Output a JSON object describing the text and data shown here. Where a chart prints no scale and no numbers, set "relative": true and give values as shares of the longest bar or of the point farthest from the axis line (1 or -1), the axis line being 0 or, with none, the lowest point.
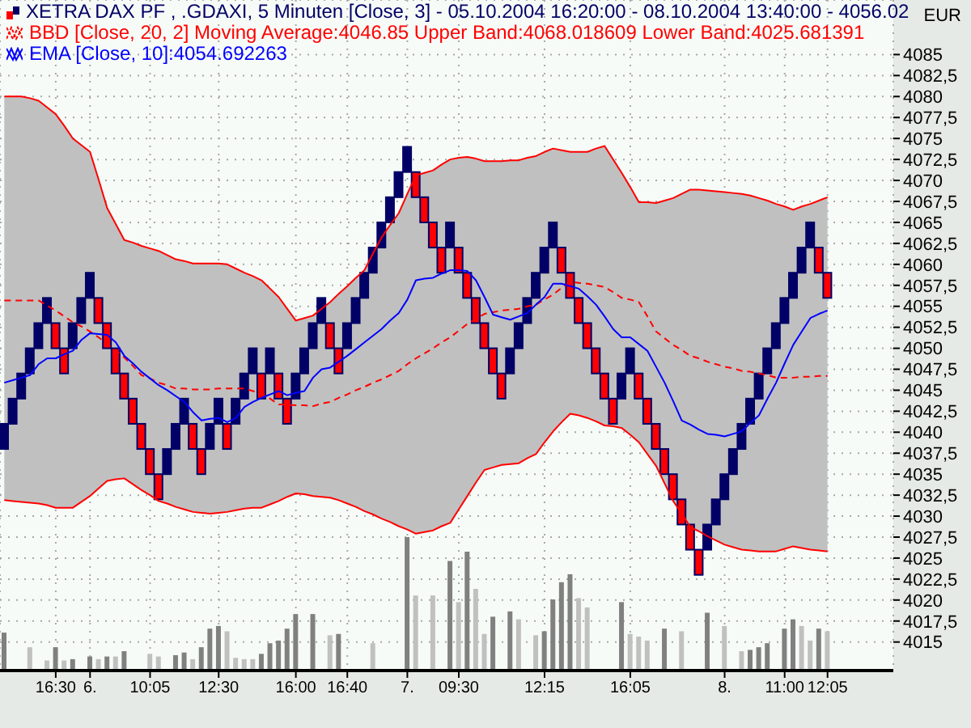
{
  "chart_data": [
    {
      "type": "candlestick",
      "ylabel": "EUR",
      "legend": "top left",
      "grid": true,
      "categories": [
        null,
        null,
        null,
        null,
        null,
        null,
        "16:30",
        null,
        null,
        null,
        "6.",
        null,
        null,
        null,
        null,
        null,
        null,
        "10:05",
        null,
        null,
        null,
        null,
        null,
        null,
        null,
        "12:30",
        null,
        null,
        null,
        null,
        null,
        null,
        null,
        null,
        "16:00",
        null,
        null,
        null,
        null,
        null,
        "16:40",
        null,
        null,
        null,
        null,
        null,
        null,
        "7.",
        null,
        null,
        null,
        null,
        null,
        "09:30",
        null,
        null,
        null,
        null,
        null,
        null,
        null,
        null,
        null,
        "12:15",
        null,
        null,
        null,
        null,
        null,
        null,
        null,
        null,
        null,
        "16:05",
        null,
        null,
        null,
        null,
        null,
        null,
        null,
        null,
        null,
        null,
        "8.",
        null,
        null,
        null,
        null,
        null,
        null,
        "11:00",
        null,
        null,
        null,
        null,
        "12:05"
      ],
      "ylim": [
        4011.5,
        4091.5
      ],
      "yticks": [
        4015,
        {
          "value": 4017.5,
          "label": "4017,5"
        },
        4020,
        {
          "value": 4022.5,
          "label": "4022,5"
        },
        4025,
        {
          "value": 4027.5,
          "label": "4027,5"
        },
        4030,
        {
          "value": 4032.5,
          "label": "4032,5"
        },
        4035,
        {
          "value": 4037.5,
          "label": "4037,5"
        },
        4040,
        {
          "value": 4042.5,
          "label": "4042,5"
        },
        4045,
        {
          "value": 4047.5,
          "label": "4047,5"
        },
        4050,
        {
          "value": 4052.5,
          "label": "4052,5"
        },
        4055,
        {
          "value": 4057.5,
          "label": "4057,5"
        },
        4060,
        {
          "value": 4062.5,
          "label": "4062,5"
        },
        4065,
        {
          "value": 4067.5,
          "label": "4067,5"
        },
        4070,
        {
          "value": 4072.5,
          "label": "4072,5"
        },
        4075,
        {
          "value": 4077.5,
          "label": "4077,5"
        },
        4080,
        {
          "value": 4082.5,
          "label": "4082,5"
        },
        4085
      ],
      "series": [
        {
          "name": "XETRA DAX PF , .GDAXI, 5 Minuten [Close, 3] - 05.10.2004 16:20:00 - 08.10.2004 13:40:00 - 4056.02",
          "color": "#000066",
          "ohlc": [
            [
              4038,
              4041,
              4038,
              4041
            ],
            [
              4041,
              4044,
              4041,
              4044
            ],
            [
              4044,
              4047,
              4044,
              4047
            ],
            [
              4047,
              4050,
              4047,
              4050
            ],
            [
              4050,
              4053,
              4050,
              4053
            ],
            [
              4053,
              4056,
              4053,
              4056
            ],
            [
              4053,
              4053,
              4050,
              4050
            ],
            [
              4050,
              4050,
              4047,
              4047
            ],
            [
              4050,
              4053,
              4050,
              4053
            ],
            [
              4053,
              4056,
              4053,
              4056
            ],
            [
              4056,
              4059,
              4056,
              4059
            ],
            [
              4056,
              4056,
              4053,
              4053
            ],
            [
              4053,
              4053,
              4050,
              4050
            ],
            [
              4050,
              4050,
              4047,
              4047
            ],
            [
              4047,
              4047,
              4044,
              4044
            ],
            [
              4044,
              4044,
              4041,
              4041
            ],
            [
              4041,
              4041,
              4038,
              4038
            ],
            [
              4038,
              4038,
              4035,
              4035
            ],
            [
              4035,
              4035,
              4032,
              4032
            ],
            [
              4035,
              4038,
              4035,
              4038
            ],
            [
              4038,
              4041,
              4038,
              4041
            ],
            [
              4041,
              4044,
              4041,
              4044
            ],
            [
              4041,
              4041,
              4038,
              4038
            ],
            [
              4038,
              4038,
              4035,
              4035
            ],
            [
              4038,
              4041,
              4038,
              4041
            ],
            [
              4041,
              4044,
              4041,
              4044
            ],
            [
              4041,
              4041,
              4038,
              4038
            ],
            [
              4041,
              4044,
              4041,
              4044
            ],
            [
              4044,
              4047,
              4044,
              4047
            ],
            [
              4047,
              4050,
              4047,
              4050
            ],
            [
              4047,
              4047,
              4044,
              4044
            ],
            [
              4047,
              4050,
              4047,
              4050
            ],
            [
              4047,
              4047,
              4044,
              4044
            ],
            [
              4044,
              4044,
              4041,
              4041
            ],
            [
              4044,
              4047,
              4044,
              4047
            ],
            [
              4047,
              4050,
              4047,
              4050
            ],
            [
              4050,
              4053,
              4050,
              4053
            ],
            [
              4053,
              4056,
              4053,
              4056
            ],
            [
              4053,
              4053,
              4050,
              4050
            ],
            [
              4050,
              4050,
              4047,
              4047
            ],
            [
              4050,
              4053,
              4050,
              4053
            ],
            [
              4053,
              4056,
              4053,
              4056
            ],
            [
              4056,
              4059,
              4056,
              4059
            ],
            [
              4059,
              4062,
              4059,
              4062
            ],
            [
              4062,
              4065,
              4062,
              4065
            ],
            [
              4065,
              4068,
              4065,
              4068
            ],
            [
              4068,
              4071,
              4068,
              4071
            ],
            [
              4071,
              4074,
              4071,
              4074
            ],
            [
              4071,
              4071,
              4068,
              4068
            ],
            [
              4068,
              4068,
              4065,
              4065
            ],
            [
              4065,
              4065,
              4062,
              4062
            ],
            [
              4062,
              4062,
              4059,
              4059
            ],
            [
              4062,
              4065,
              4062,
              4065
            ],
            [
              4062,
              4062,
              4059,
              4059
            ],
            [
              4059,
              4059,
              4056,
              4056
            ],
            [
              4056,
              4056,
              4053,
              4053
            ],
            [
              4053,
              4053,
              4050,
              4050
            ],
            [
              4050,
              4050,
              4047,
              4047
            ],
            [
              4047,
              4047,
              4044,
              4044
            ],
            [
              4047,
              4050,
              4047,
              4050
            ],
            [
              4050,
              4053,
              4050,
              4053
            ],
            [
              4053,
              4056,
              4053,
              4056
            ],
            [
              4056,
              4059,
              4056,
              4059
            ],
            [
              4059,
              4062,
              4059,
              4062
            ],
            [
              4062,
              4065,
              4062,
              4065
            ],
            [
              4062,
              4062,
              4059,
              4059
            ],
            [
              4059,
              4059,
              4056,
              4056
            ],
            [
              4056,
              4056,
              4053,
              4053
            ],
            [
              4053,
              4053,
              4050,
              4050
            ],
            [
              4050,
              4050,
              4047,
              4047
            ],
            [
              4047,
              4047,
              4044,
              4044
            ],
            [
              4044,
              4044,
              4041,
              4041
            ],
            [
              4044,
              4047,
              4044,
              4047
            ],
            [
              4047,
              4050,
              4047,
              4050
            ],
            [
              4047,
              4047,
              4044,
              4044
            ],
            [
              4044,
              4044,
              4041,
              4041
            ],
            [
              4041,
              4041,
              4038,
              4038
            ],
            [
              4038,
              4038,
              4035,
              4035
            ],
            [
              4035,
              4035,
              4032,
              4032
            ],
            [
              4032,
              4032,
              4029,
              4029
            ],
            [
              4029,
              4029,
              4026,
              4026
            ],
            [
              4026,
              4026,
              4023,
              4023
            ],
            [
              4026,
              4029,
              4026,
              4029
            ],
            [
              4029,
              4032,
              4029,
              4032
            ],
            [
              4032,
              4035,
              4032,
              4035
            ],
            [
              4035,
              4038,
              4035,
              4038
            ],
            [
              4038,
              4041,
              4038,
              4041
            ],
            [
              4041,
              4044,
              4041,
              4044
            ],
            [
              4044,
              4047,
              4044,
              4047
            ],
            [
              4047,
              4050,
              4047,
              4050
            ],
            [
              4050,
              4053,
              4050,
              4053
            ],
            [
              4053,
              4056,
              4053,
              4056
            ],
            [
              4056,
              4059,
              4056,
              4059
            ],
            [
              4059,
              4062,
              4059,
              4062
            ],
            [
              4062,
              4065,
              4062,
              4065
            ],
            [
              4062,
              4062,
              4059,
              4059
            ],
            [
              4059,
              4059,
              4056,
              4056
            ]
          ],
          "colors": [
            "#000066",
            "#000066",
            "#000066",
            "#000066",
            "#000066",
            "#000066",
            "#ff0000",
            "#ff0000",
            "#000066",
            "#000066",
            "#000066",
            "#ff0000",
            "#ff0000",
            "#ff0000",
            "#ff0000",
            "#ff0000",
            "#ff0000",
            "#ff0000",
            "#ff0000",
            "#000066",
            "#000066",
            "#000066",
            "#ff0000",
            "#ff0000",
            "#000066",
            "#000066",
            "#ff0000",
            "#000066",
            "#000066",
            "#000066",
            "#ff0000",
            "#000066",
            "#ff0000",
            "#ff0000",
            "#000066",
            "#000066",
            "#000066",
            "#000066",
            "#ff0000",
            "#ff0000",
            "#000066",
            "#000066",
            "#000066",
            "#000066",
            "#000066",
            "#000066",
            "#000066",
            "#000066",
            "#ff0000",
            "#ff0000",
            "#ff0000",
            "#ff0000",
            "#000066",
            "#ff0000",
            "#ff0000",
            "#ff0000",
            "#ff0000",
            "#ff0000",
            "#ff0000",
            "#000066",
            "#000066",
            "#000066",
            "#000066",
            "#000066",
            "#000066",
            "#ff0000",
            "#ff0000",
            "#ff0000",
            "#ff0000",
            "#ff0000",
            "#ff0000",
            "#ff0000",
            "#000066",
            "#000066",
            "#ff0000",
            "#ff0000",
            "#ff0000",
            "#ff0000",
            "#ff0000",
            "#ff0000",
            "#ff0000",
            "#ff0000",
            "#000066",
            "#000066",
            "#000066",
            "#000066",
            "#000066",
            "#000066",
            "#000066",
            "#000066",
            "#000066",
            "#000066",
            "#000066",
            "#000066",
            "#000066",
            "#ff0000",
            "#ff0000"
          ]
        },
        {
          "type": "line",
          "name": "BBD [Close, 20, 2] Moving Average:4046.85 Upper Band:4068.018609 Lower Band:4025.681391",
          "color": "#ff0000",
          "line_style": "dashed",
          "values": [
            4055.7,
            4055.7,
            4055.7,
            4055.7,
            4055.7,
            4055.1,
            4054.5,
            4053.8,
            4053.1,
            4052.6,
            4052.0,
            4051.3,
            4050.5,
            4049.7,
            4048.9,
            4047.9,
            4046.8,
            4046.4,
            4045.9,
            4045.6,
            4045.2,
            4045.2,
            4045.1,
            4045.1,
            4045.1,
            4045.2,
            4045.2,
            4045.2,
            4045.2,
            4044.9,
            4044.6,
            4044.0,
            4043.3,
            4043.3,
            4043.2,
            4043.2,
            4043.1,
            4043.4,
            4043.6,
            4044.1,
            4044.5,
            4045.0,
            4045.4,
            4045.9,
            4046.3,
            4046.8,
            4047.3,
            4048.1,
            4048.8,
            4049.4,
            4050.0,
            4050.7,
            4051.3,
            4052.1,
            4052.9,
            4053.5,
            4054.1,
            4054.3,
            4054.5,
            4054.6,
            4054.7,
            4055.0,
            4055.2,
            4055.8,
            4056.4,
            4057.2,
            4057.9,
            4057.8,
            4057.7,
            4057.5,
            4057.3,
            4056.7,
            4056.0,
            4055.8,
            4055.5,
            4053.8,
            4052.0,
            4051.2,
            4050.4,
            4049.8,
            4049.1,
            4048.8,
            4048.4,
            4048.1,
            4047.8,
            4047.6,
            4047.3,
            4047.2,
            4047.0,
            4046.8,
            4046.5,
            4046.5,
            4046.5,
            4046.6,
            4046.6,
            4046.7,
            4046.7
          ],
          "upper": [
            4080.0,
            4080.0,
            4080.0,
            4079.8,
            4079.5,
            4078.7,
            4077.9,
            4076.5,
            4075.0,
            4074.2,
            4073.4,
            4070.1,
            4066.7,
            4064.8,
            4062.9,
            4062.6,
            4062.2,
            4061.9,
            4061.6,
            4061.1,
            4060.6,
            4060.4,
            4060.1,
            4060.1,
            4060.1,
            4060.1,
            4060.0,
            4059.5,
            4059.0,
            4058.6,
            4058.1,
            4057.1,
            4056.1,
            4054.7,
            4053.3,
            4053.6,
            4053.9,
            4054.7,
            4055.5,
            4056.5,
            4057.4,
            4058.4,
            4059.3,
            4061.3,
            4063.2,
            4064.7,
            4066.1,
            4068.4,
            4070.6,
            4070.9,
            4071.2,
            4071.9,
            4072.5,
            4072.7,
            4072.8,
            4072.6,
            4072.3,
            4072.3,
            4072.3,
            4072.4,
            4072.4,
            4072.7,
            4072.9,
            4073.4,
            4073.8,
            4073.6,
            4073.4,
            4073.4,
            4073.4,
            4073.8,
            4074.1,
            4072.5,
            4070.9,
            4069.2,
            4067.4,
            4067.4,
            4067.3,
            4067.6,
            4067.9,
            4068.4,
            4068.9,
            4068.9,
            4068.8,
            4068.7,
            4068.6,
            4068.5,
            4068.4,
            4068.2,
            4067.9,
            4067.6,
            4067.2,
            4066.9,
            4066.5,
            4066.9,
            4067.2,
            4067.6,
            4068.0
          ],
          "lower": [
            4031.9,
            4031.8,
            4031.7,
            4031.6,
            4031.5,
            4031.3,
            4031.0,
            4031.0,
            4031.0,
            4031.7,
            4032.4,
            4033.3,
            4034.2,
            4034.4,
            4034.5,
            4033.8,
            4033.1,
            4032.5,
            4031.8,
            4031.5,
            4031.1,
            4030.8,
            4030.5,
            4030.4,
            4030.3,
            4030.4,
            4030.5,
            4030.7,
            4030.9,
            4031.0,
            4031.0,
            4031.4,
            4031.8,
            4032.3,
            4032.7,
            4032.6,
            4032.4,
            4032.3,
            4032.2,
            4031.9,
            4031.5,
            4031.1,
            4030.6,
            4030.2,
            4029.7,
            4029.3,
            4028.8,
            4028.4,
            4027.9,
            4028.1,
            4028.3,
            4028.8,
            4029.2,
            4030.8,
            4032.4,
            4034.0,
            4035.5,
            4035.8,
            4036.1,
            4036.2,
            4036.3,
            4036.9,
            4037.4,
            4038.8,
            4040.1,
            4041.2,
            4042.2,
            4042.0,
            4041.7,
            4041.3,
            4040.8,
            4040.7,
            4040.5,
            4039.7,
            4038.8,
            4037.4,
            4036.0,
            4033.9,
            4031.8,
            4030.3,
            4028.7,
            4028.2,
            4027.6,
            4027.1,
            4026.6,
            4026.3,
            4026.0,
            4025.9,
            4025.8,
            4025.8,
            4025.8,
            4026.1,
            4026.4,
            4026.2,
            4026.0,
            4025.9,
            4025.8
          ]
        },
        {
          "type": "line",
          "color": "#ff0000",
          "line_style": "solid",
          "values": [
            4080.0,
            4080.0,
            4080.0,
            4079.8,
            4079.5,
            4078.7,
            4077.9,
            4076.5,
            4075.0,
            4074.2,
            4073.4,
            4070.1,
            4066.7,
            4064.8,
            4062.9,
            4062.6,
            4062.2,
            4061.9,
            4061.6,
            4061.1,
            4060.6,
            4060.4,
            4060.1,
            4060.1,
            4060.1,
            4060.1,
            4060.0,
            4059.5,
            4059.0,
            4058.6,
            4058.1,
            4057.1,
            4056.1,
            4054.7,
            4053.3,
            4053.6,
            4053.9,
            4054.7,
            4055.5,
            4056.5,
            4057.4,
            4058.4,
            4059.3,
            4061.3,
            4063.2,
            4064.7,
            4066.1,
            4068.4,
            4070.6,
            4070.9,
            4071.2,
            4071.9,
            4072.5,
            4072.7,
            4072.8,
            4072.6,
            4072.3,
            4072.3,
            4072.3,
            4072.4,
            4072.4,
            4072.7,
            4072.9,
            4073.4,
            4073.8,
            4073.6,
            4073.4,
            4073.4,
            4073.4,
            4073.8,
            4074.1,
            4072.5,
            4070.9,
            4069.2,
            4067.4,
            4067.4,
            4067.3,
            4067.6,
            4067.9,
            4068.4,
            4068.9,
            4068.9,
            4068.8,
            4068.7,
            4068.6,
            4068.5,
            4068.4,
            4068.2,
            4067.9,
            4067.6,
            4067.2,
            4066.9,
            4066.5,
            4066.9,
            4067.2,
            4067.6,
            4068.0
          ]
        },
        {
          "type": "line",
          "color": "#ff0000",
          "line_style": "solid",
          "values": [
            4031.9,
            4031.8,
            4031.7,
            4031.6,
            4031.5,
            4031.3,
            4031.0,
            4031.0,
            4031.0,
            4031.7,
            4032.4,
            4033.3,
            4034.2,
            4034.4,
            4034.5,
            4033.8,
            4033.1,
            4032.5,
            4031.8,
            4031.5,
            4031.1,
            4030.8,
            4030.5,
            4030.4,
            4030.3,
            4030.4,
            4030.5,
            4030.7,
            4030.9,
            4031.0,
            4031.0,
            4031.4,
            4031.8,
            4032.3,
            4032.7,
            4032.6,
            4032.4,
            4032.3,
            4032.2,
            4031.9,
            4031.5,
            4031.1,
            4030.6,
            4030.2,
            4029.7,
            4029.3,
            4028.8,
            4028.4,
            4027.9,
            4028.1,
            4028.3,
            4028.8,
            4029.2,
            4030.8,
            4032.4,
            4034.0,
            4035.5,
            4035.8,
            4036.1,
            4036.2,
            4036.3,
            4036.9,
            4037.4,
            4038.8,
            4040.1,
            4041.2,
            4042.2,
            4042.0,
            4041.7,
            4041.3,
            4040.8,
            4040.7,
            4040.5,
            4039.7,
            4038.8,
            4037.4,
            4036.0,
            4033.9,
            4031.8,
            4030.3,
            4028.7,
            4028.2,
            4027.6,
            4027.1,
            4026.6,
            4026.3,
            4026.0,
            4025.9,
            4025.8,
            4025.8,
            4025.8,
            4026.1,
            4026.4,
            4026.2,
            4026.0,
            4025.9,
            4025.8
          ]
        },
        {
          "type": "line",
          "name": "EMA [Close, 10]:4054.692263",
          "color": "#0000ff",
          "values": [
            4045.9,
            4046.2,
            4046.5,
            4046.8,
            4048.1,
            4048.8,
            4048.8,
            4049.3,
            4049.7,
            4051.0,
            4051.8,
            4051.7,
            4051.6,
            4050.7,
            4049.1,
            4048.2,
            4047.2,
            4046.4,
            4045.6,
            4045.0,
            4044.3,
            4043.6,
            4042.4,
            4041.4,
            4041.6,
            4041.7,
            4041.2,
            4041.7,
            4043.0,
            4043.6,
            4044.1,
            4044.5,
            4044.9,
            4044.4,
            4044.7,
            4044.9,
            4046.5,
            4047.5,
            4047.7,
            4048.4,
            4049.1,
            4049.9,
            4050.7,
            4051.5,
            4052.3,
            4053.3,
            4054.2,
            4055.8,
            4058.1,
            4058.3,
            4058.4,
            4058.9,
            4059.3,
            4059.3,
            4059.2,
            4058.1,
            4056.1,
            4054.0,
            4053.7,
            4053.4,
            4053.8,
            4054.2,
            4055.2,
            4056.1,
            4057.7,
            4057.7,
            4057.4,
            4057.1,
            4056.2,
            4055.2,
            4053.8,
            4052.3,
            4051.3,
            4051.3,
            4050.5,
            4049.7,
            4047.8,
            4045.9,
            4043.7,
            4041.4,
            4040.9,
            4040.3,
            4039.8,
            4039.7,
            4039.5,
            4039.8,
            4040.1,
            4041.1,
            4042.0,
            4044.0,
            4045.9,
            4048.2,
            4050.4,
            4052.0,
            4053.6,
            4054.1,
            4054.5
          ]
        }
      ]
    },
    {
      "type": "bar",
      "relative": true,
      "categories": [
        null,
        null,
        null,
        null,
        null,
        null,
        null,
        null,
        null,
        null,
        null,
        null,
        null,
        null,
        null,
        null,
        null,
        null,
        null,
        null,
        null,
        null,
        null,
        null,
        null,
        null,
        null,
        null,
        null,
        null,
        null,
        null,
        null,
        null,
        null,
        null,
        null,
        null,
        null,
        null,
        null,
        null,
        null,
        null,
        null,
        null,
        null,
        null,
        null,
        null,
        null,
        null,
        null,
        null,
        null,
        null,
        null,
        null,
        null,
        null,
        null,
        null,
        null,
        null,
        null,
        null,
        null,
        null,
        null,
        null,
        null,
        null,
        null,
        null,
        null,
        null,
        null,
        null,
        null,
        null,
        null,
        null,
        null,
        null,
        null,
        null,
        null,
        null,
        null,
        null,
        null,
        null,
        null,
        null,
        null,
        null,
        null
      ],
      "values": [
        0.28,
        null,
        null,
        0.17,
        null,
        0.07,
        0.17,
        0.07,
        0.08,
        null,
        0.1,
        0.08,
        0.1,
        0.1,
        0.14,
        null,
        null,
        0.12,
        0.1,
        null,
        0.11,
        0.13,
        0.08,
        0.17,
        0.31,
        0.33,
        0.29,
        0.09,
        0.08,
        0.08,
        0.12,
        0.2,
        0.22,
        0.31,
        0.42,
        null,
        0.42,
        null,
        0.26,
        0.27,
        null,
        null,
        null,
        0.2,
        null,
        null,
        null,
        1,
        0.56,
        null,
        0.56,
        null,
        0.82,
        0.51,
        0.89,
        0.61,
        0.27,
        0.4,
        null,
        0.44,
        0.38,
        null,
        0.26,
        0.29,
        0.53,
        0.66,
        0.72,
        0.54,
        0.47,
        null,
        null,
        null,
        0.51,
        0.27,
        0.25,
        0.22,
        null,
        0.31,
        null,
        0.29,
        null,
        null,
        0.43,
        null,
        0.33,
        null,
        0.14,
        0.15,
        0.17,
        0.2,
        null,
        0.31,
        0.38,
        0.33,
        0.22,
        0.31,
        0.29
      ],
      "colors": [
        "#808080",
        null,
        null,
        "#c0c0c0",
        null,
        "#c0c0c0",
        "#808080",
        "#c0c0c0",
        "#808080",
        null,
        "#808080",
        "#c0c0c0",
        "#808080",
        "#c0c0c0",
        "#808080",
        null,
        null,
        "#c0c0c0",
        "#c0c0c0",
        null,
        "#808080",
        "#808080",
        "#c0c0c0",
        "#808080",
        "#808080",
        "#808080",
        "#c0c0c0",
        "#c0c0c0",
        "#c0c0c0",
        "#c0c0c0",
        "#808080",
        "#808080",
        "#808080",
        "#808080",
        "#808080",
        null,
        "#808080",
        null,
        "#c0c0c0",
        "#808080",
        null,
        null,
        null,
        "#c0c0c0",
        null,
        null,
        null,
        "#808080",
        "#c0c0c0",
        null,
        "#c0c0c0",
        null,
        "#808080",
        "#c0c0c0",
        "#808080",
        "#c0c0c0",
        "#c0c0c0",
        "#808080",
        null,
        "#808080",
        "#c0c0c0",
        null,
        "#c0c0c0",
        "#808080",
        "#808080",
        "#808080",
        "#808080",
        "#c0c0c0",
        "#c0c0c0",
        null,
        null,
        null,
        "#808080",
        "#c0c0c0",
        "#c0c0c0",
        "#c0c0c0",
        null,
        "#808080",
        null,
        "#c0c0c0",
        null,
        null,
        "#808080",
        null,
        "#c0c0c0",
        null,
        "#c0c0c0",
        "#808080",
        "#808080",
        "#808080",
        null,
        "#808080",
        "#808080",
        "#c0c0c0",
        "#c0c0c0",
        "#808080",
        "#c0c0c0"
      ]
    }
  ]
}
